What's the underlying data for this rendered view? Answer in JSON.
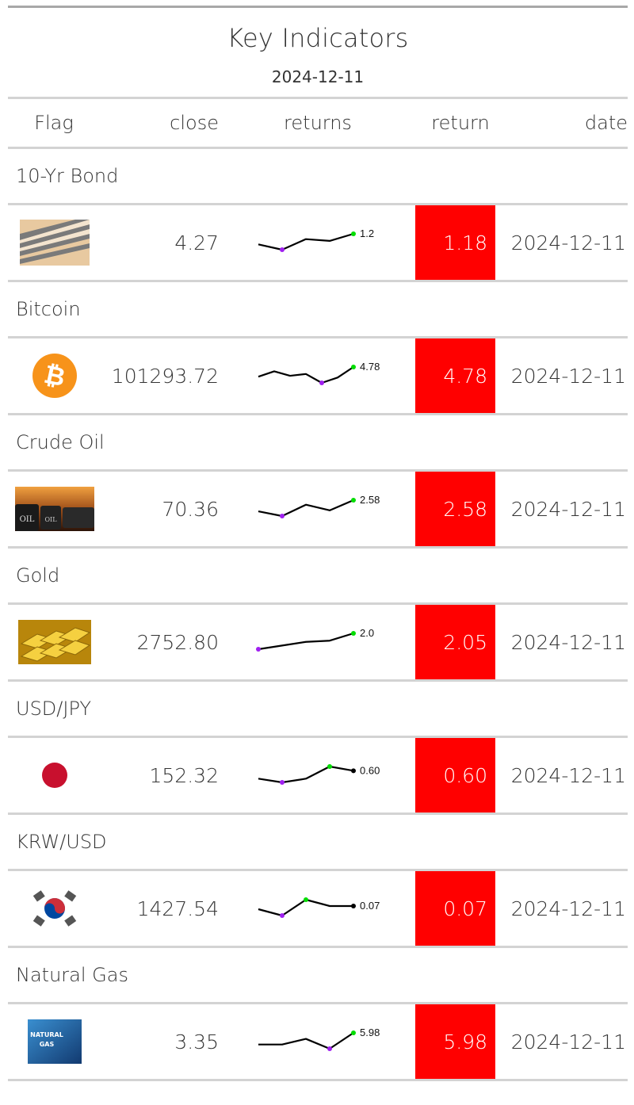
{
  "title": "Key Indicators",
  "subtitle": "2024-12-11",
  "columns": {
    "flag": "Flag",
    "close": "close",
    "returns": "returns",
    "return": "return",
    "date": "date"
  },
  "colors": {
    "return_cell_bg": "#ff0000",
    "spark_min_dot": "#a020f0",
    "spark_max_dot": "#00dd00",
    "spark_last_dot": "#000000",
    "rule": "#d3d3d3",
    "top_rule": "#a8a8a8"
  },
  "rows": [
    {
      "group": "10-Yr Bond",
      "flag_icon": "bond-certificates-image",
      "close": "4.27",
      "spark_label": "1.2",
      "return": "1.18",
      "date": "2024-12-11",
      "spark": [
        0.6,
        0.3,
        0.9,
        0.8,
        1.2
      ],
      "spark_min_index": 1,
      "spark_max_index": 4
    },
    {
      "group": "Bitcoin",
      "flag_icon": "bitcoin-logo",
      "close": "101293.72",
      "spark_label": "4.78",
      "return": "4.78",
      "date": "2024-12-11",
      "spark": [
        2.6,
        3.8,
        2.8,
        3.2,
        1.2,
        2.4,
        4.78
      ],
      "spark_min_index": 4,
      "spark_max_index": 6
    },
    {
      "group": "Crude Oil",
      "flag_icon": "crude-oil-barrels-image",
      "close": "70.36",
      "spark_label": "2.58",
      "return": "2.58",
      "date": "2024-12-11",
      "spark": [
        1.4,
        0.9,
        2.1,
        1.5,
        2.58
      ],
      "spark_min_index": 1,
      "spark_max_index": 4
    },
    {
      "group": "Gold",
      "flag_icon": "gold-bars-image",
      "close": "2752.80",
      "spark_label": "2.0",
      "return": "2.05",
      "date": "2024-12-11",
      "spark": [
        1.4,
        1.55,
        1.7,
        1.75,
        2.05
      ],
      "spark_min_index": 0,
      "spark_max_index": 4
    },
    {
      "group": "USD/JPY",
      "flag_icon": "japan-flag",
      "close": "152.32",
      "spark_label": "0.60",
      "return": "0.60",
      "date": "2024-12-11",
      "spark": [
        0.45,
        0.38,
        0.45,
        0.68,
        0.6
      ],
      "spark_min_index": 1,
      "spark_max_index": 3
    },
    {
      "group": "KRW/USD",
      "flag_icon": "south-korea-flag",
      "close": "1427.54",
      "spark_label": "0.07",
      "return": "0.07",
      "date": "2024-12-11",
      "spark": [
        0.06,
        0.04,
        0.09,
        0.07,
        0.07
      ],
      "spark_min_index": 1,
      "spark_max_index": 2
    },
    {
      "group": "Natural Gas",
      "flag_icon": "natural-gas-image",
      "close": "3.35",
      "spark_label": "5.98",
      "return": "5.98",
      "date": "2024-12-11",
      "spark": [
        3.5,
        3.5,
        4.7,
        2.6,
        5.98
      ],
      "spark_min_index": 3,
      "spark_max_index": 4
    }
  ],
  "natural_gas_image_text": [
    "NATURAL",
    "GAS"
  ],
  "crude_oil_image_text": "OIL"
}
